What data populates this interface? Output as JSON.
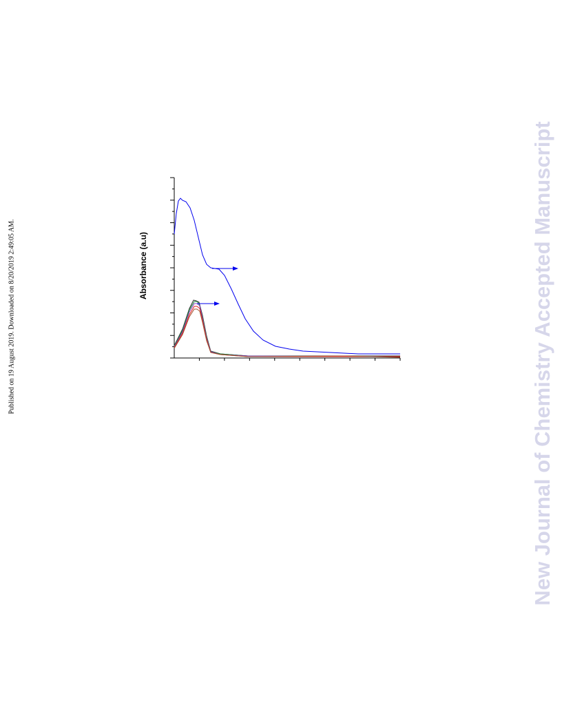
{
  "sidebar": "Published on 19 August 2019. Downloaded on 8/20/2019 2:49:05 AM.",
  "watermark": "New Journal of Chemistry Accepted Manuscript",
  "figure": {
    "y_axis_label": "Absorbance (a.u)"
  }
}
